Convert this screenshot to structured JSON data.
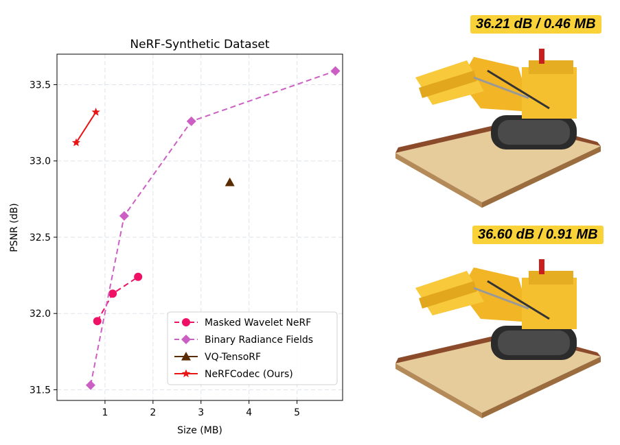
{
  "chart_data": {
    "type": "scatter",
    "title": "NeRF-Synthetic Dataset",
    "xlabel": "Size (MB)",
    "ylabel": "PSNR (dB)",
    "xlim": [
      0.0,
      5.95
    ],
    "ylim": [
      31.43,
      33.7
    ],
    "xticks": [
      1,
      2,
      3,
      4,
      5
    ],
    "yticks": [
      31.5,
      32.0,
      32.5,
      33.0,
      33.5
    ],
    "xtick_labels": [
      "1",
      "2",
      "3",
      "4",
      "5"
    ],
    "ytick_labels": [
      "31.5",
      "32.0",
      "32.5",
      "33.0",
      "33.5"
    ],
    "grid": true,
    "legend_position": "lower-right",
    "series": [
      {
        "name": "Masked Wavelet NeRF",
        "color": "#ee1166",
        "marker": "circle",
        "line": "dashed",
        "x": [
          0.84,
          1.16,
          1.69
        ],
        "y": [
          31.95,
          32.13,
          32.24
        ]
      },
      {
        "name": "Binary Radiance Fields",
        "color": "#cc5fc3",
        "marker": "diamond",
        "line": "dashed",
        "x": [
          0.7,
          1.4,
          2.8,
          5.8
        ],
        "y": [
          31.53,
          32.64,
          33.26,
          33.59
        ]
      },
      {
        "name": "VQ-TensoRF",
        "color": "#5a2a00",
        "marker": "triangle",
        "line": "solid",
        "x": [
          3.6
        ],
        "y": [
          32.86
        ]
      },
      {
        "name": "NeRFCodec (Ours)",
        "color": "#e81515",
        "marker": "star",
        "line": "solid",
        "x": [
          0.4,
          0.81
        ],
        "y": [
          33.12,
          33.32
        ]
      }
    ]
  },
  "renders": [
    {
      "label": "36.21 dB / 0.46 MB",
      "icon": "bulldozer-render-icon"
    },
    {
      "label": "36.60 dB / 0.91 MB",
      "icon": "bulldozer-render-icon"
    }
  ]
}
